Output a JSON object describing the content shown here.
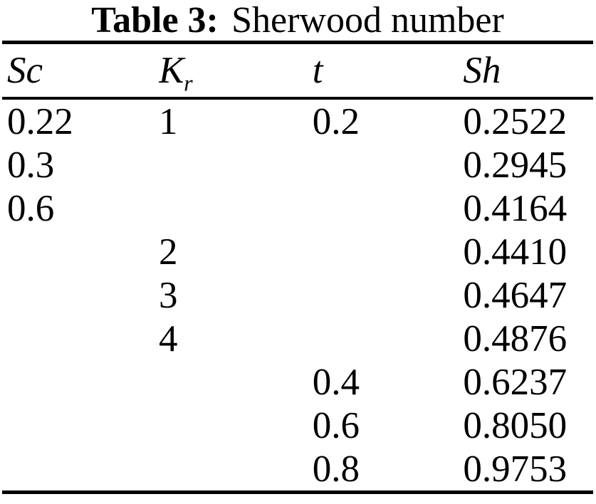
{
  "caption": {
    "label": "Table 3:",
    "title": "Sherwood number"
  },
  "table": {
    "headers": [
      {
        "main": "Sc",
        "sub": ""
      },
      {
        "main": "K",
        "sub": "r"
      },
      {
        "main": "t",
        "sub": ""
      },
      {
        "main": "Sh",
        "sub": ""
      }
    ],
    "rows": [
      [
        "0.22",
        "1",
        "0.2",
        "0.2522"
      ],
      [
        "0.3",
        "",
        "",
        "0.2945"
      ],
      [
        "0.6",
        "",
        "",
        "0.4164"
      ],
      [
        "",
        "2",
        "",
        "0.4410"
      ],
      [
        "",
        "3",
        "",
        "0.4647"
      ],
      [
        "",
        "4",
        "",
        "0.4876"
      ],
      [
        "",
        "",
        "0.4",
        "0.6237"
      ],
      [
        "",
        "",
        "0.6",
        "0.8050"
      ],
      [
        "",
        "",
        "0.8",
        "0.9753"
      ]
    ]
  },
  "colors": {
    "text": "#000000",
    "background": "#ffffff",
    "rule": "#000000"
  }
}
